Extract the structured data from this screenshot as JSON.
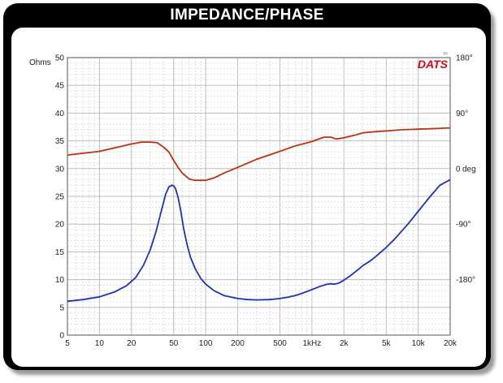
{
  "header": {
    "title": "IMPEDANCE/PHASE"
  },
  "brand": {
    "logo_text": "DATS",
    "sub_text": "ᵗᵐ"
  },
  "colors": {
    "impedance": "#1a33b8",
    "phase": "#c03010",
    "grid": "#c8c8c8",
    "brand": "#e0001a"
  },
  "chart_data": {
    "type": "line",
    "x_scale": "log",
    "xlim": [
      5,
      20000
    ],
    "x_ticks": [
      {
        "v": 5,
        "label": "5"
      },
      {
        "v": 10,
        "label": "10"
      },
      {
        "v": 20,
        "label": "20"
      },
      {
        "v": 50,
        "label": "50"
      },
      {
        "v": 100,
        "label": "100"
      },
      {
        "v": 200,
        "label": "200"
      },
      {
        "v": 500,
        "label": "500"
      },
      {
        "v": 1000,
        "label": "1kHz"
      },
      {
        "v": 2000,
        "label": "2k"
      },
      {
        "v": 5000,
        "label": "5k"
      },
      {
        "v": 10000,
        "label": "10k"
      },
      {
        "v": 20000,
        "label": "20k"
      }
    ],
    "y_left": {
      "label": "Ohms",
      "lim": [
        0,
        50
      ],
      "ticks": [
        "0",
        "5",
        "10",
        "15",
        "20",
        "25",
        "30",
        "35",
        "40",
        "45",
        "50"
      ]
    },
    "y_right": {
      "label": "deg",
      "lim": [
        -270,
        180
      ],
      "ticks": [
        {
          "v": 180,
          "label": "180°"
        },
        {
          "v": 90,
          "label": "90°"
        },
        {
          "v": 0,
          "label": "0"
        },
        {
          "v": -90,
          "label": "-90°"
        },
        {
          "v": -180,
          "label": "-180°"
        }
      ]
    },
    "grid": true,
    "series": [
      {
        "axis": "left",
        "x": [
          5,
          7,
          10,
          14,
          18,
          22,
          26,
          30,
          34,
          38,
          42,
          45,
          48,
          50,
          52,
          55,
          58,
          62,
          67,
          72,
          80,
          90,
          100,
          120,
          150,
          200,
          250,
          300,
          400,
          500,
          600,
          700,
          800,
          1000,
          1200,
          1400,
          1500,
          1600,
          1700,
          1800,
          2000,
          2300,
          2600,
          2800,
          3000,
          3500,
          4000,
          5000,
          6000,
          8000,
          10000,
          13000,
          16000,
          20000
        ],
        "y": [
          6.1,
          6.4,
          6.9,
          7.8,
          8.9,
          10.4,
          12.6,
          15.3,
          18.6,
          22.2,
          25.4,
          26.7,
          27.0,
          26.9,
          26.4,
          24.8,
          22.6,
          19.2,
          16.2,
          14.0,
          11.9,
          10.2,
          9.2,
          8.0,
          7.1,
          6.6,
          6.4,
          6.35,
          6.4,
          6.6,
          6.85,
          7.15,
          7.5,
          8.2,
          8.8,
          9.2,
          9.25,
          9.2,
          9.25,
          9.4,
          9.9,
          10.7,
          11.5,
          12.0,
          12.5,
          13.3,
          14.2,
          15.8,
          17.3,
          20.0,
          22.3,
          25.0,
          27.0,
          28.0
        ]
      },
      {
        "axis": "right",
        "x": [
          5,
          10,
          15,
          20,
          25,
          30,
          35,
          40,
          45,
          50,
          55,
          60,
          70,
          80,
          100,
          120,
          150,
          200,
          300,
          500,
          700,
          1000,
          1300,
          1500,
          1700,
          2000,
          2500,
          3000,
          4000,
          5000,
          7000,
          10000,
          15000,
          20000
        ],
        "y": [
          22,
          28,
          35,
          40,
          43,
          43,
          42,
          35,
          27,
          13,
          2,
          -7,
          -17,
          -19,
          -19,
          -15,
          -7,
          2,
          15,
          28,
          37,
          44,
          51,
          51,
          48,
          50,
          54,
          58,
          60,
          61,
          63,
          64,
          65,
          66
        ]
      }
    ]
  }
}
